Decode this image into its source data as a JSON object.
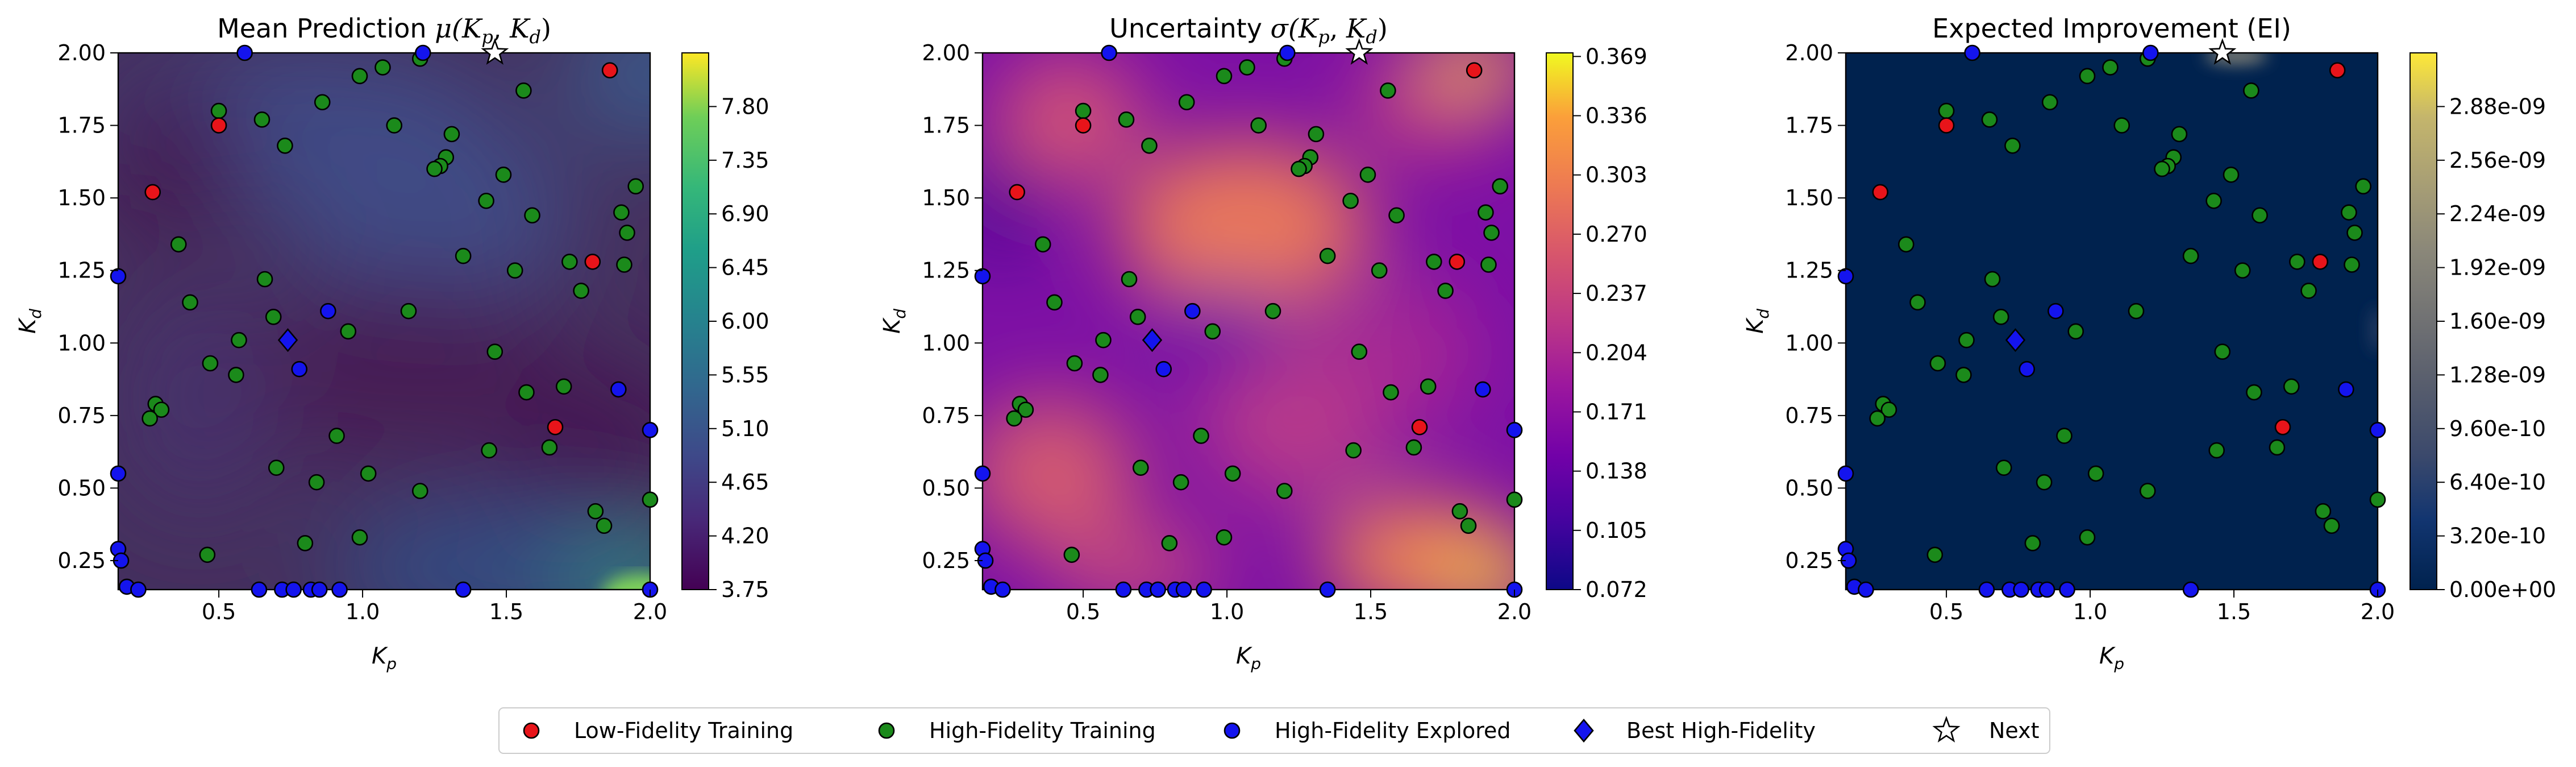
{
  "figure": {
    "legend": [
      {
        "label": "Low-Fidelity Training",
        "marker": "circle",
        "color": "#e8141a"
      },
      {
        "label": "High-Fidelity Training",
        "marker": "circle",
        "color": "#1b8a1b"
      },
      {
        "label": "High-Fidelity Explored",
        "marker": "circle",
        "color": "#1414ee"
      },
      {
        "label": "Best High-Fidelity",
        "marker": "diamond",
        "color": "#1414ee"
      },
      {
        "label": "Next",
        "marker": "star",
        "color": "#ffffff"
      }
    ]
  },
  "chart_data": [
    {
      "type": "heatmap",
      "title_main": "Mean Prediction ",
      "title_math": "μ(K",
      "xlabel": "K",
      "xlabel_sub": "p",
      "ylabel": "K",
      "ylabel_sub": "d",
      "xlim": [
        0.15,
        2.0
      ],
      "ylim": [
        0.15,
        2.0
      ],
      "xticks": [
        "0.5",
        "1.0",
        "1.5",
        "2.0"
      ],
      "yticks": [
        "0.25",
        "0.50",
        "0.75",
        "1.00",
        "1.25",
        "1.50",
        "1.75",
        "2.00"
      ],
      "colormap": "viridis",
      "colorbar_range": [
        3.75,
        8.25
      ],
      "colorbar_ticks": [
        "3.75",
        "4.20",
        "4.65",
        "5.10",
        "5.55",
        "6.00",
        "6.45",
        "6.90",
        "7.35",
        "7.80"
      ]
    },
    {
      "type": "heatmap",
      "title_main": "Uncertainty ",
      "title_math": "σ(K",
      "xlabel": "K",
      "xlabel_sub": "p",
      "ylabel": "K",
      "ylabel_sub": "d",
      "xlim": [
        0.15,
        2.0
      ],
      "ylim": [
        0.15,
        2.0
      ],
      "xticks": [
        "0.5",
        "1.0",
        "1.5",
        "2.0"
      ],
      "yticks": [
        "0.25",
        "0.50",
        "0.75",
        "1.00",
        "1.25",
        "1.50",
        "1.75",
        "2.00"
      ],
      "colormap": "plasma",
      "colorbar_range": [
        0.072,
        0.371
      ],
      "colorbar_ticks": [
        "0.072",
        "0.105",
        "0.138",
        "0.171",
        "0.204",
        "0.237",
        "0.270",
        "0.303",
        "0.336",
        "0.369"
      ]
    },
    {
      "type": "heatmap",
      "title_main": "Expected Improvement (EI)",
      "title_math": "",
      "xlabel": "K",
      "xlabel_sub": "p",
      "ylabel": "K",
      "ylabel_sub": "d",
      "xlim": [
        0.15,
        2.0
      ],
      "ylim": [
        0.15,
        2.0
      ],
      "xticks": [
        "0.5",
        "1.0",
        "1.5",
        "2.0"
      ],
      "yticks": [
        "0.25",
        "0.50",
        "0.75",
        "1.00",
        "1.25",
        "1.50",
        "1.75",
        "2.00"
      ],
      "colormap": "cividis",
      "colorbar_range": [
        0,
        3.2e-09
      ],
      "colorbar_ticks": [
        "0.00e+00",
        "3.20e-10",
        "6.40e-10",
        "9.60e-10",
        "1.28e-09",
        "1.60e-09",
        "1.92e-09",
        "2.24e-09",
        "2.56e-09",
        "2.88e-09"
      ]
    }
  ],
  "points": {
    "low_fidelity": [
      [
        0.5,
        1.75
      ],
      [
        0.27,
        1.52
      ],
      [
        1.86,
        1.94
      ],
      [
        1.8,
        1.28
      ],
      [
        1.67,
        0.71
      ]
    ],
    "high_fidelity": [
      [
        0.5,
        1.8
      ],
      [
        0.65,
        1.77
      ],
      [
        0.86,
        1.83
      ],
      [
        0.99,
        1.92
      ],
      [
        1.07,
        1.95
      ],
      [
        1.2,
        1.98
      ],
      [
        1.11,
        1.75
      ],
      [
        1.31,
        1.72
      ],
      [
        1.29,
        1.64
      ],
      [
        1.27,
        1.61
      ],
      [
        1.25,
        1.6
      ],
      [
        1.56,
        1.87
      ],
      [
        0.73,
        1.68
      ],
      [
        1.49,
        1.58
      ],
      [
        1.43,
        1.49
      ],
      [
        1.35,
        1.3
      ],
      [
        1.59,
        1.44
      ],
      [
        1.95,
        1.54
      ],
      [
        1.9,
        1.45
      ],
      [
        1.92,
        1.38
      ],
      [
        1.53,
        1.25
      ],
      [
        1.72,
        1.28
      ],
      [
        1.76,
        1.18
      ],
      [
        1.91,
        1.27
      ],
      [
        0.36,
        1.34
      ],
      [
        0.4,
        1.14
      ],
      [
        0.66,
        1.22
      ],
      [
        0.69,
        1.09
      ],
      [
        0.57,
        1.01
      ],
      [
        0.47,
        0.93
      ],
      [
        0.56,
        0.89
      ],
      [
        0.95,
        1.04
      ],
      [
        1.16,
        1.11
      ],
      [
        1.46,
        0.97
      ],
      [
        1.57,
        0.83
      ],
      [
        1.7,
        0.85
      ],
      [
        0.28,
        0.79
      ],
      [
        0.3,
        0.77
      ],
      [
        0.26,
        0.74
      ],
      [
        0.91,
        0.68
      ],
      [
        1.44,
        0.63
      ],
      [
        1.65,
        0.64
      ],
      [
        0.7,
        0.57
      ],
      [
        0.84,
        0.52
      ],
      [
        1.02,
        0.55
      ],
      [
        1.2,
        0.49
      ],
      [
        0.99,
        0.33
      ],
      [
        0.8,
        0.31
      ],
      [
        0.46,
        0.27
      ],
      [
        1.81,
        0.42
      ],
      [
        1.84,
        0.37
      ],
      [
        2.0,
        0.46
      ]
    ],
    "high_fidelity_explored": [
      [
        0.15,
        1.23
      ],
      [
        0.15,
        0.55
      ],
      [
        0.15,
        0.29
      ],
      [
        0.16,
        0.25
      ],
      [
        0.18,
        0.16
      ],
      [
        0.22,
        0.15
      ],
      [
        0.59,
        2.0
      ],
      [
        1.21,
        2.0
      ],
      [
        0.88,
        1.11
      ],
      [
        0.78,
        0.91
      ],
      [
        1.89,
        0.84
      ],
      [
        2.0,
        0.7
      ],
      [
        0.64,
        0.15
      ],
      [
        0.72,
        0.15
      ],
      [
        0.76,
        0.15
      ],
      [
        0.82,
        0.15
      ],
      [
        0.85,
        0.15
      ],
      [
        0.92,
        0.15
      ],
      [
        1.35,
        0.15
      ],
      [
        2.0,
        0.15
      ]
    ],
    "best": [
      0.74,
      1.01
    ],
    "next": [
      1.46,
      2.0
    ]
  }
}
